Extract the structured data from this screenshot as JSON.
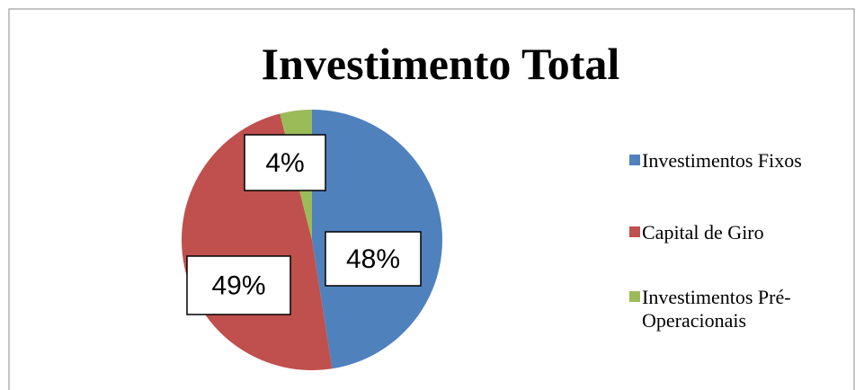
{
  "chart_data": {
    "type": "pie",
    "title": "Investimento Total",
    "categories": [
      "Investimentos Fixos",
      "Capital de Giro",
      "Investimentos Pré-Operacionais"
    ],
    "values": [
      48,
      49,
      4
    ],
    "value_labels": [
      "48%",
      "49%",
      "4%"
    ],
    "colors": [
      "#4f81bd",
      "#c0504d",
      "#9bbb59"
    ],
    "legend": "right"
  }
}
